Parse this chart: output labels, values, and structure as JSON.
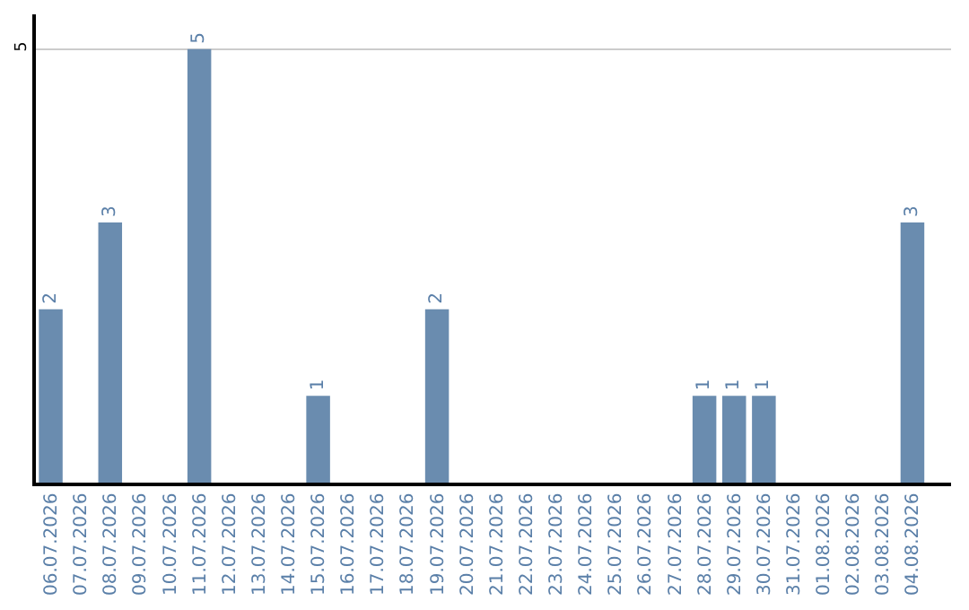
{
  "chart_data": {
    "type": "bar",
    "categories": [
      "06.07.2026",
      "07.07.2026",
      "08.07.2026",
      "09.07.2026",
      "10.07.2026",
      "11.07.2026",
      "12.07.2026",
      "13.07.2026",
      "14.07.2026",
      "15.07.2026",
      "16.07.2026",
      "17.07.2026",
      "18.07.2026",
      "19.07.2026",
      "20.07.2026",
      "21.07.2026",
      "22.07.2026",
      "23.07.2026",
      "24.07.2026",
      "25.07.2026",
      "26.07.2026",
      "27.07.2026",
      "28.07.2026",
      "29.07.2026",
      "30.07.2026",
      "31.07.2026",
      "01.08.2026",
      "02.08.2026",
      "03.08.2026",
      "04.08.2026"
    ],
    "values": [
      2,
      0,
      3,
      0,
      0,
      5,
      0,
      0,
      0,
      1,
      0,
      0,
      0,
      2,
      0,
      0,
      0,
      0,
      0,
      0,
      0,
      0,
      1,
      1,
      1,
      0,
      0,
      0,
      0,
      3
    ],
    "value_labels": [
      "2",
      null,
      "3",
      null,
      null,
      "5",
      null,
      null,
      null,
      "1",
      null,
      null,
      null,
      "2",
      null,
      null,
      null,
      null,
      null,
      null,
      null,
      null,
      "1",
      "1",
      "1",
      null,
      null,
      null,
      null,
      "3"
    ],
    "color": "#6a8caf",
    "ylim": [
      0,
      5.4
    ],
    "yticks": [
      5
    ],
    "grid": "y",
    "legend": false
  }
}
